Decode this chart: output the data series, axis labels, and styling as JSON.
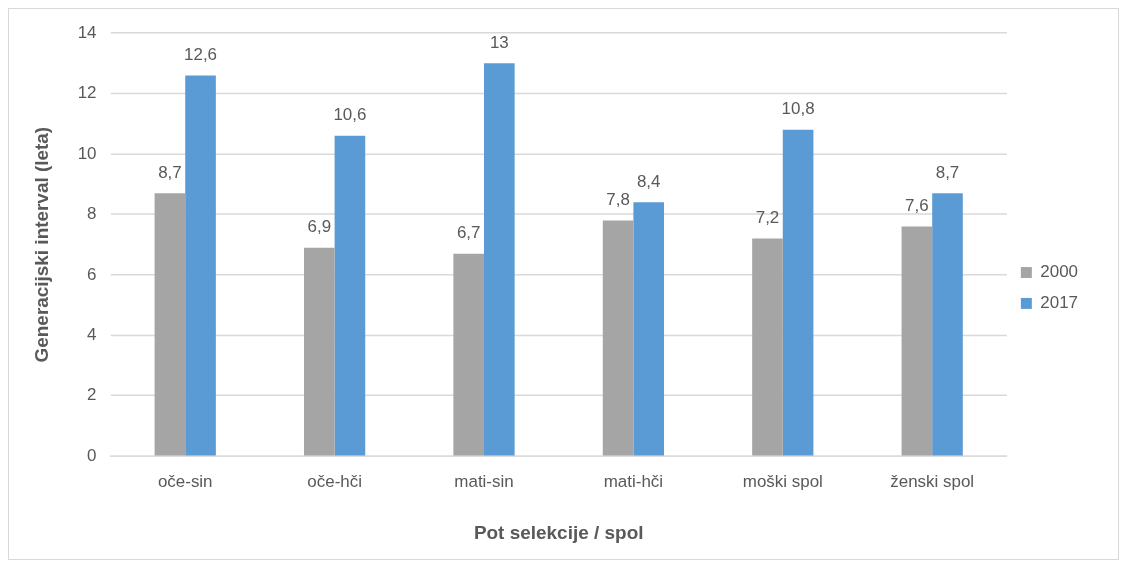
{
  "chart_data": {
    "type": "bar",
    "categories": [
      "oče-sin",
      "oče-hči",
      "mati-sin",
      "mati-hči",
      "moški spol",
      "ženski spol"
    ],
    "series": [
      {
        "name": "2000",
        "color": "#a5a5a5",
        "values": [
          8.7,
          6.9,
          6.7,
          7.8,
          7.2,
          7.6
        ],
        "value_labels": [
          "8,7",
          "6,9",
          "6,7",
          "7,8",
          "7,2",
          "7,6"
        ]
      },
      {
        "name": "2017",
        "color": "#5b9bd5",
        "values": [
          12.6,
          10.6,
          13,
          8.4,
          10.8,
          8.7
        ],
        "value_labels": [
          "12,6",
          "10,6",
          "13",
          "8,4",
          "10,8",
          "8,7"
        ]
      }
    ],
    "xlabel": "Pot selekcije / spol",
    "ylabel": "Generacijski interval (leta)",
    "ylim": [
      0,
      14
    ],
    "yticks": [
      0,
      2,
      4,
      6,
      8,
      10,
      12,
      14
    ],
    "grid": "y",
    "legend": "right"
  }
}
